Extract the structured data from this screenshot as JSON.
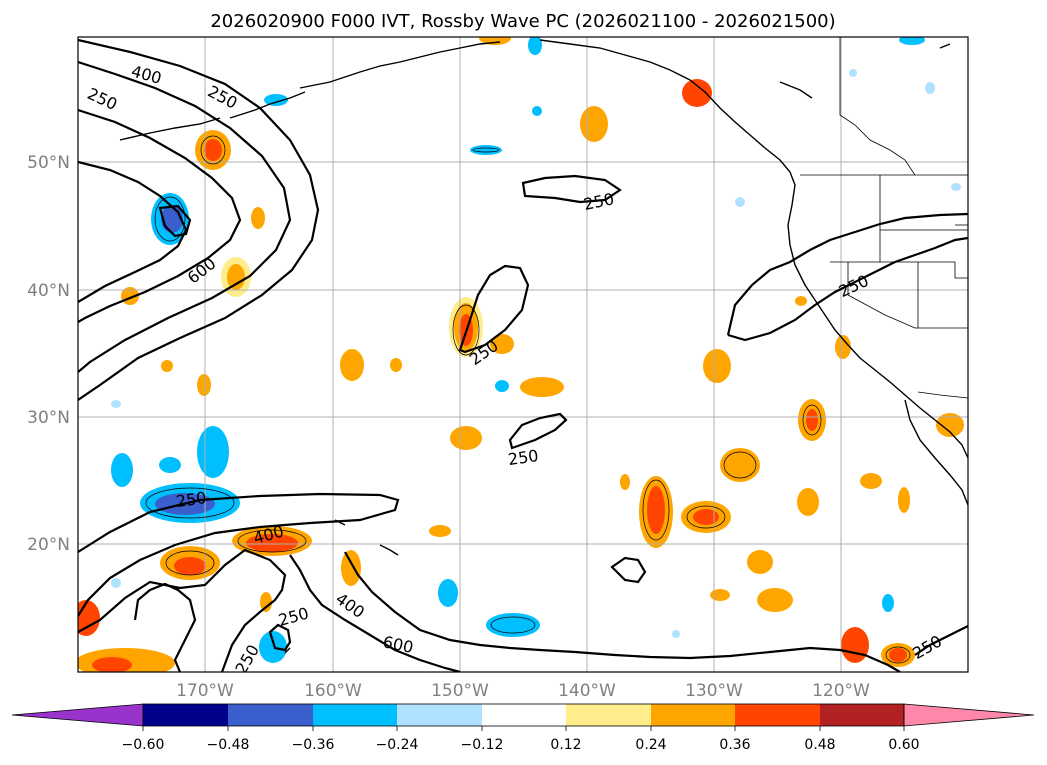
{
  "map": {
    "title": "2026020900 F000 IVT, Rossby Wave PC (2026021100 - 2026021500)",
    "lon_labels": [
      "170°W",
      "160°W",
      "150°W",
      "140°W",
      "130°W",
      "120°W"
    ],
    "lat_labels": [
      "50°N",
      "40°N",
      "30°N",
      "20°N"
    ],
    "contour_labels": [
      {
        "id": "c1",
        "text": "400"
      },
      {
        "id": "c2",
        "text": "250"
      },
      {
        "id": "c3",
        "text": "250"
      },
      {
        "id": "c4",
        "text": "600"
      },
      {
        "id": "c5",
        "text": "250"
      },
      {
        "id": "c6",
        "text": "250"
      },
      {
        "id": "c7",
        "text": "250"
      },
      {
        "id": "c8",
        "text": "250"
      },
      {
        "id": "c9",
        "text": "250"
      },
      {
        "id": "c10",
        "text": "400"
      },
      {
        "id": "c11",
        "text": "400"
      },
      {
        "id": "c12",
        "text": "250"
      },
      {
        "id": "c13",
        "text": "600"
      },
      {
        "id": "c14",
        "text": "250"
      },
      {
        "id": "c15",
        "text": "250"
      }
    ]
  },
  "colorbar": {
    "colors": [
      "#9933cc",
      "#00008b",
      "#3a5fcd",
      "#00bfff",
      "#b0e2ff",
      "#ffffff",
      "#ffec8b",
      "#ffa500",
      "#ff4500",
      "#b22222",
      "#ff88aa"
    ],
    "tick_labels": [
      "−0.60",
      "−0.48",
      "−0.36",
      "−0.24",
      "−0.12",
      "0.12",
      "0.24",
      "0.36",
      "0.48",
      "0.60"
    ]
  }
}
